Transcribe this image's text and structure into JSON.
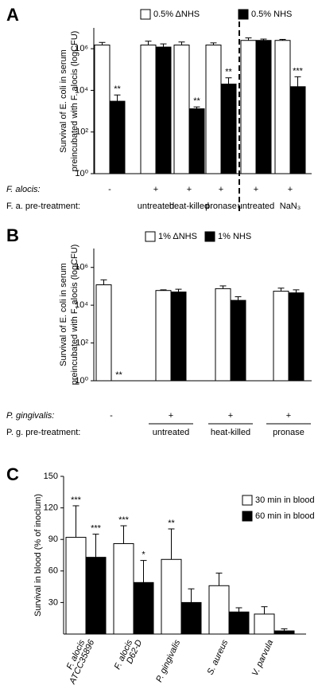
{
  "chart_data": [
    {
      "panel": "A",
      "type": "bar",
      "log_scale": true,
      "ylabel": [
        "Survival of E. coli in serum",
        "preincubated with F. alocis (logCFU)"
      ],
      "x_label": "F. alocis:",
      "categories": [
        "-",
        "+",
        "+",
        "+",
        "+",
        "+"
      ],
      "pretreatment_label": "F. a. pre-treatment:",
      "pretreatment": [
        null,
        "untreated",
        "heat-killed",
        "pronase",
        "untreated",
        "NaN₃"
      ],
      "ylim": [
        1,
        10000000
      ],
      "yticks": [
        {
          "value": 1,
          "label": "10⁰"
        },
        {
          "value": 100,
          "label": "10²"
        },
        {
          "value": 10000,
          "label": "10⁴"
        },
        {
          "value": 1000000,
          "label": "10⁶"
        }
      ],
      "series": [
        {
          "name": "0.5% ΔNHS",
          "color": "#ffffff",
          "values": [
            1500000,
            1500000,
            1500000,
            1500000,
            2500000,
            2500000
          ],
          "errors": [
            500000,
            800000,
            600000,
            400000,
            800000,
            300000
          ],
          "significance": [
            null,
            null,
            null,
            null,
            null,
            null
          ]
        },
        {
          "name": "0.5% NHS",
          "color": "#000000",
          "values": [
            3000,
            1200000,
            1300,
            20000,
            2500000,
            15000
          ],
          "errors": [
            3000,
            500000,
            300,
            20000,
            400000,
            30000
          ],
          "significance": [
            "**",
            null,
            "**",
            "**",
            null,
            "***"
          ]
        }
      ]
    },
    {
      "panel": "B",
      "type": "bar",
      "log_scale": true,
      "ylabel": [
        "Survival of E. coli in serum",
        "preincubated with F. alocis (logCFU)"
      ],
      "x_label": "P. gingivalis:",
      "categories": [
        "-",
        "+",
        "+",
        "+"
      ],
      "pretreatment_label": "P. g. pre-treatment:",
      "pretreatment": [
        null,
        "untreated",
        "heat-killed",
        "pronase"
      ],
      "ylim": [
        1,
        10000000
      ],
      "yticks": [
        {
          "value": 1,
          "label": "10⁰"
        },
        {
          "value": 100,
          "label": "10²"
        },
        {
          "value": 10000,
          "label": "10⁴"
        },
        {
          "value": 1000000,
          "label": "10⁶"
        }
      ],
      "series": [
        {
          "name": "1% ΔNHS",
          "color": "#ffffff",
          "values": [
            120000,
            60000,
            75000,
            55000
          ],
          "errors": [
            100000,
            5000,
            30000,
            25000
          ],
          "significance": [
            null,
            null,
            null,
            null
          ]
        },
        {
          "name": "1% NHS",
          "color": "#000000",
          "values": [
            null,
            50000,
            18000,
            45000
          ],
          "errors": [
            null,
            20000,
            10000,
            20000
          ],
          "significance": [
            "**",
            null,
            null,
            null
          ]
        }
      ]
    },
    {
      "panel": "C",
      "type": "bar",
      "log_scale": false,
      "ylabel": [
        "Survival in blood (% of inoclum)"
      ],
      "categories": [
        [
          "F. alocis",
          "ATCC35896"
        ],
        [
          "F. alocis",
          "D62-D"
        ],
        [
          "P. gingivalis"
        ],
        [
          "S. aureus"
        ],
        [
          "V. parvula"
        ]
      ],
      "ylim": [
        0,
        150
      ],
      "yticks": [
        30,
        60,
        90,
        120,
        150
      ],
      "series": [
        {
          "name": "30 min in blood",
          "color": "#ffffff",
          "values": [
            92,
            86,
            71,
            46,
            19
          ],
          "errors": [
            30,
            17,
            29,
            12,
            7
          ],
          "significance": [
            "***",
            "***",
            "**",
            null,
            null
          ]
        },
        {
          "name": "60 min in blood",
          "color": "#000000",
          "values": [
            73,
            49,
            30,
            21,
            3
          ],
          "errors": [
            22,
            21,
            13,
            4,
            2
          ],
          "significance": [
            "***",
            "*",
            null,
            null,
            null
          ]
        }
      ]
    }
  ]
}
